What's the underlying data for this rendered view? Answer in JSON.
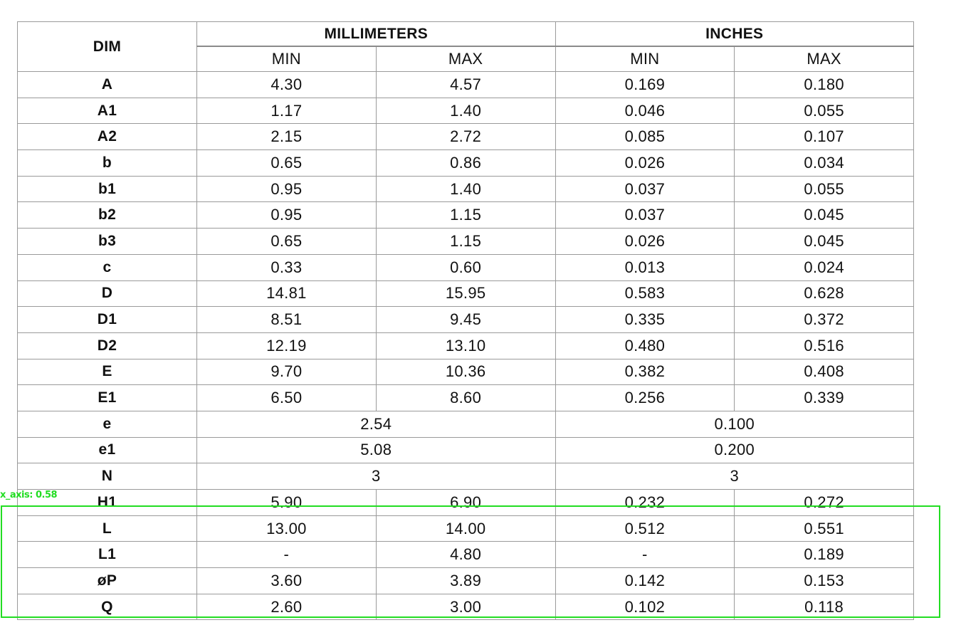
{
  "table": {
    "headers": {
      "dim": "DIM",
      "mm": "MILLIMETERS",
      "in": "INCHES",
      "mm_min": "MIN",
      "mm_max": "MAX",
      "in_min": "MIN",
      "in_max": "MAX"
    },
    "rows": [
      {
        "dim": "A",
        "mm_min": "4.30",
        "mm_max": "4.57",
        "in_min": "0.169",
        "in_max": "0.180"
      },
      {
        "dim": "A1",
        "mm_min": "1.17",
        "mm_max": "1.40",
        "in_min": "0.046",
        "in_max": "0.055"
      },
      {
        "dim": "A2",
        "mm_min": "2.15",
        "mm_max": "2.72",
        "in_min": "0.085",
        "in_max": "0.107"
      },
      {
        "dim": "b",
        "mm_min": "0.65",
        "mm_max": "0.86",
        "in_min": "0.026",
        "in_max": "0.034"
      },
      {
        "dim": "b1",
        "mm_min": "0.95",
        "mm_max": "1.40",
        "in_min": "0.037",
        "in_max": "0.055"
      },
      {
        "dim": "b2",
        "mm_min": "0.95",
        "mm_max": "1.15",
        "in_min": "0.037",
        "in_max": "0.045"
      },
      {
        "dim": "b3",
        "mm_min": "0.65",
        "mm_max": "1.15",
        "in_min": "0.026",
        "in_max": "0.045"
      },
      {
        "dim": "c",
        "mm_min": "0.33",
        "mm_max": "0.60",
        "in_min": "0.013",
        "in_max": "0.024"
      },
      {
        "dim": "D",
        "mm_min": "14.81",
        "mm_max": "15.95",
        "in_min": "0.583",
        "in_max": "0.628"
      },
      {
        "dim": "D1",
        "mm_min": "8.51",
        "mm_max": "9.45",
        "in_min": "0.335",
        "in_max": "0.372"
      },
      {
        "dim": "D2",
        "mm_min": "12.19",
        "mm_max": "13.10",
        "in_min": "0.480",
        "in_max": "0.516"
      },
      {
        "dim": "E",
        "mm_min": "9.70",
        "mm_max": "10.36",
        "in_min": "0.382",
        "in_max": "0.408"
      },
      {
        "dim": "E1",
        "mm_min": "6.50",
        "mm_max": "8.60",
        "in_min": "0.256",
        "in_max": "0.339"
      },
      {
        "dim": "e",
        "mm": "2.54",
        "in": "0.100"
      },
      {
        "dim": "e1",
        "mm": "5.08",
        "in": "0.200"
      },
      {
        "dim": "N",
        "mm": "3",
        "in": "3"
      },
      {
        "dim": "H1",
        "mm_min": "5.90",
        "mm_max": "6.90",
        "in_min": "0.232",
        "in_max": "0.272"
      },
      {
        "dim": "L",
        "mm_min": "13.00",
        "mm_max": "14.00",
        "in_min": "0.512",
        "in_max": "0.551"
      },
      {
        "dim": "L1",
        "mm_min": "-",
        "mm_max": "4.80",
        "in_min": "-",
        "in_max": "0.189"
      },
      {
        "dim": "øP",
        "mm_min": "3.60",
        "mm_max": "3.89",
        "in_min": "0.142",
        "in_max": "0.153"
      },
      {
        "dim": "Q",
        "mm_min": "2.60",
        "mm_max": "3.00",
        "in_min": "0.102",
        "in_max": "0.118"
      }
    ]
  },
  "overlay": {
    "label": "x_axis: 0.58",
    "color": "#22dd22"
  }
}
